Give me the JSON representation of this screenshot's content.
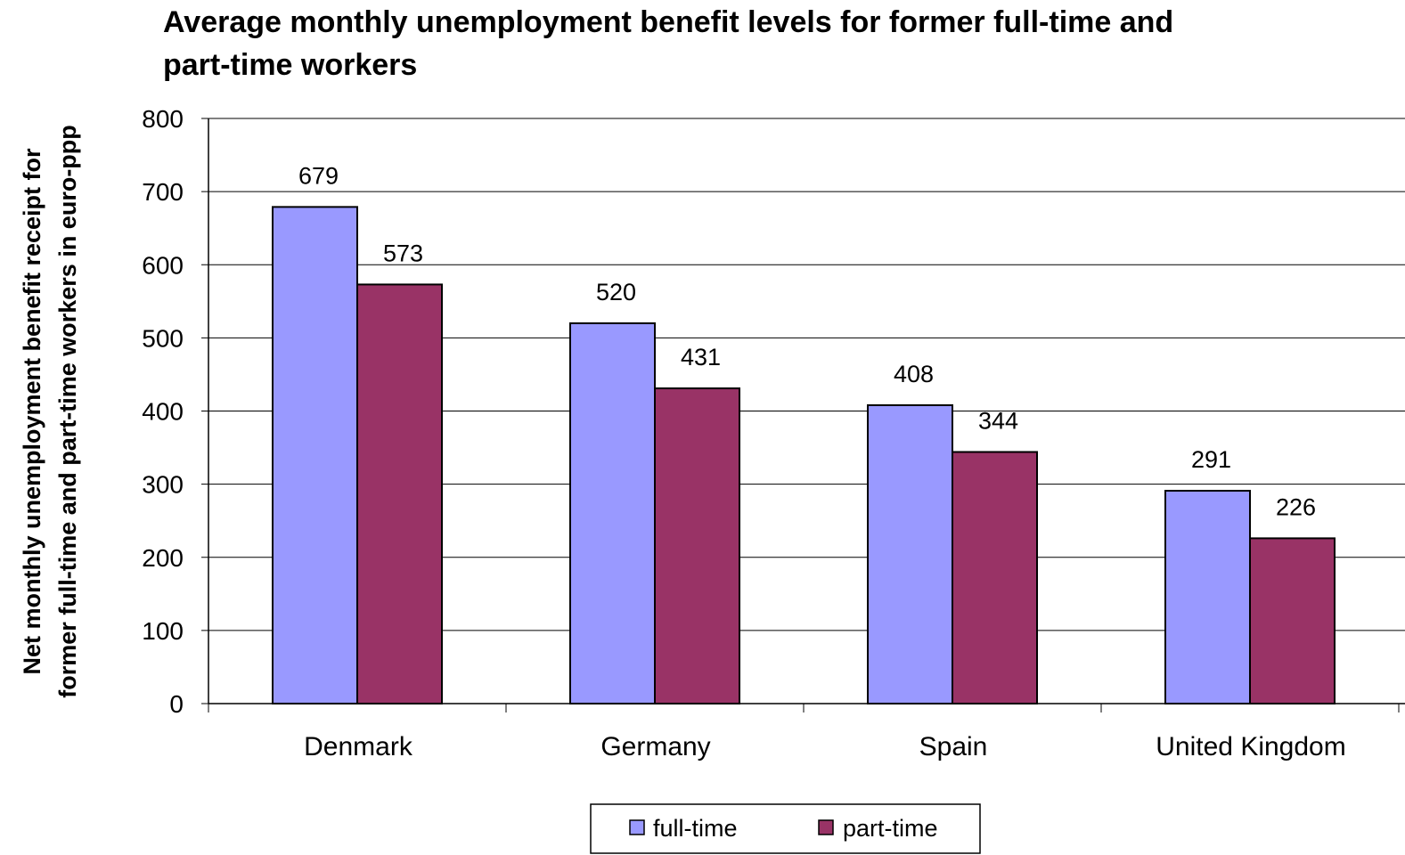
{
  "chart_data": {
    "type": "bar",
    "title": "Average monthly unemployment benefit levels for former full-time and part-time workers",
    "title_lines": [
      "Average monthly unemployment benefit levels for former full-time and",
      "part-time workers"
    ],
    "ylabel": "Net monthly unemployment benefit receipt for former full-time and part-time workers in euro-ppp",
    "ylabel_lines": [
      "Net monthly unemployment benefit receipt for",
      "former full-time and part-time workers in euro-ppp"
    ],
    "xlabel": "",
    "categories": [
      "Denmark",
      "Germany",
      "Spain",
      "United Kingdom"
    ],
    "series": [
      {
        "name": "full-time",
        "values": [
          679,
          520,
          408,
          291
        ],
        "color": "#9999ff"
      },
      {
        "name": "part-time",
        "values": [
          573,
          431,
          344,
          226
        ],
        "color": "#993366"
      }
    ],
    "ylim": [
      0,
      800
    ],
    "yticks": [
      0,
      100,
      200,
      300,
      400,
      500,
      600,
      700,
      800
    ],
    "grid": true,
    "legend": "bottom"
  }
}
